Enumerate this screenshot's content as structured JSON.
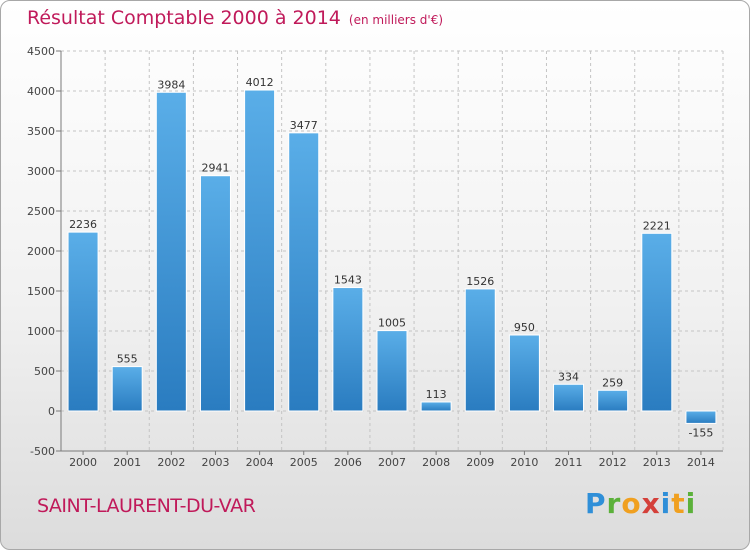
{
  "header": {
    "title": "Résultat Comptable 2000 à 2014",
    "subtitle": "(en milliers d'€)"
  },
  "footer": {
    "commune": "SAINT-LAURENT-DU-VAR",
    "logo_letters": [
      "P",
      "r",
      "o",
      "x",
      "i",
      "t",
      "i"
    ]
  },
  "colors": {
    "title": "#c01a5a",
    "bar_light": "#5aaee8",
    "bar_dark": "#2a7cc0"
  },
  "chart_data": {
    "type": "bar",
    "title": "Résultat Comptable 2000 à 2014",
    "subtitle": "(en milliers d'€)",
    "xlabel": "",
    "ylabel": "",
    "categories": [
      "2000",
      "2001",
      "2002",
      "2003",
      "2004",
      "2005",
      "2006",
      "2007",
      "2008",
      "2009",
      "2010",
      "2011",
      "2012",
      "2013",
      "2014"
    ],
    "values": [
      2236,
      555,
      3984,
      2941,
      4012,
      3477,
      1543,
      1005,
      113,
      1526,
      950,
      334,
      259,
      2221,
      -155
    ],
    "ylim": [
      -500,
      4500
    ],
    "yticks": [
      -500,
      0,
      500,
      1000,
      1500,
      2000,
      2500,
      3000,
      3500,
      4000,
      4500
    ],
    "grid": true
  }
}
